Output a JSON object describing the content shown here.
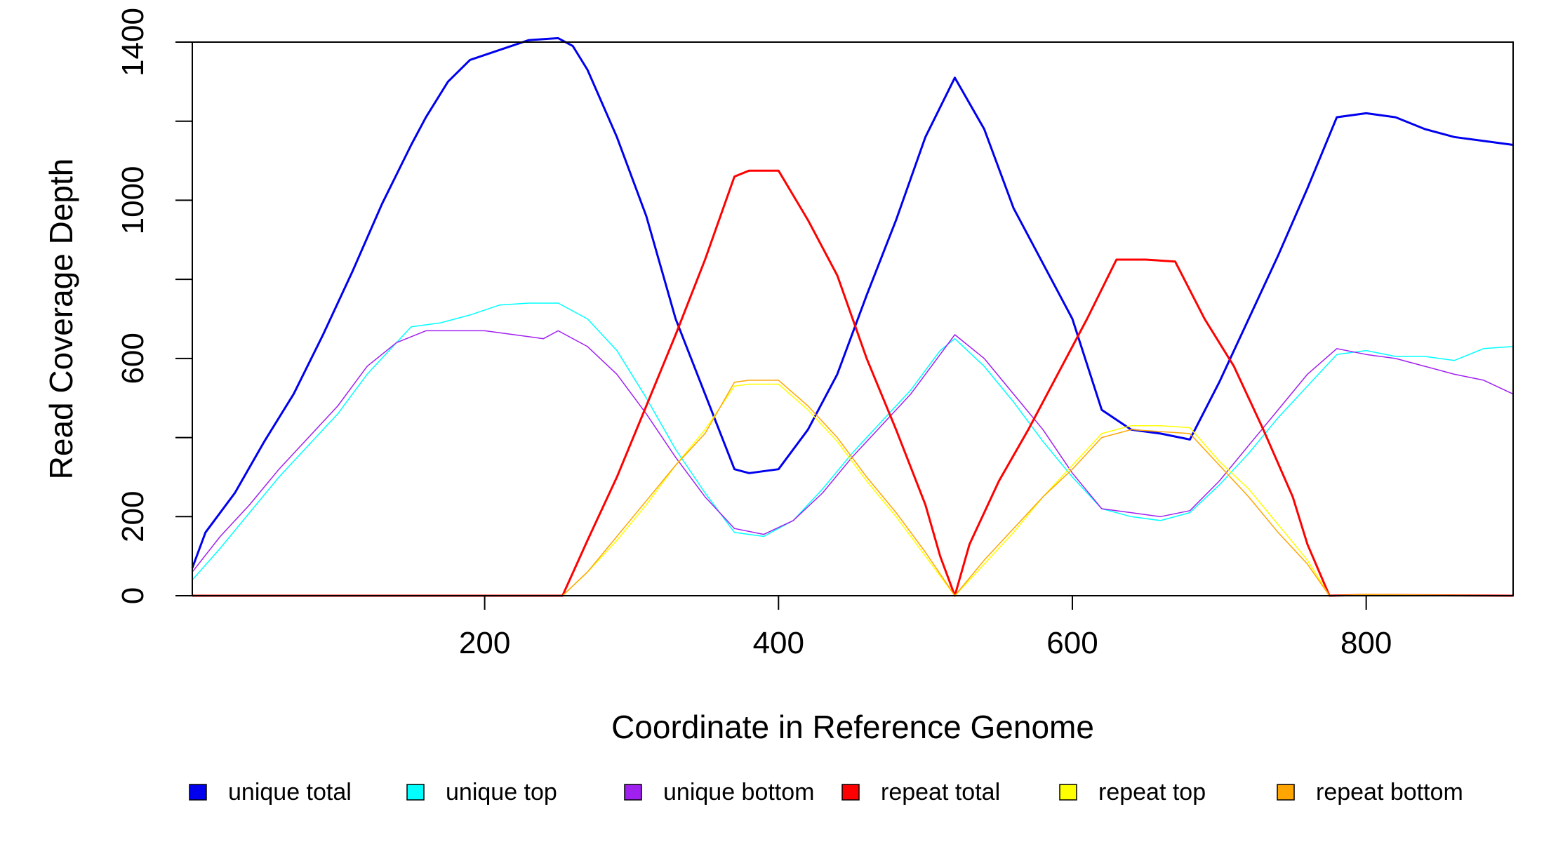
{
  "chart_data": {
    "type": "line",
    "title": "",
    "xlabel": "Coordinate in Reference Genome",
    "ylabel": "Read Coverage Depth",
    "xlim": [
      1,
      900
    ],
    "ylim": [
      0,
      1400
    ],
    "x_ticks": [
      200,
      400,
      600,
      800
    ],
    "y_ticks": [
      0,
      200,
      400,
      600,
      800,
      1000,
      1200,
      1400
    ],
    "y_tick_labels": [
      "0",
      "200",
      "",
      "600",
      "",
      "1000",
      "",
      "1400"
    ],
    "grid": false,
    "legend_position": "bottom",
    "series": [
      {
        "name": "unique total",
        "color": "#0000ee",
        "line_width": 3,
        "points": [
          [
            1,
            70
          ],
          [
            10,
            160
          ],
          [
            30,
            260
          ],
          [
            50,
            390
          ],
          [
            70,
            510
          ],
          [
            90,
            660
          ],
          [
            110,
            820
          ],
          [
            130,
            990
          ],
          [
            150,
            1140
          ],
          [
            160,
            1210
          ],
          [
            175,
            1300
          ],
          [
            190,
            1355
          ],
          [
            210,
            1380
          ],
          [
            230,
            1405
          ],
          [
            250,
            1410
          ],
          [
            260,
            1390
          ],
          [
            270,
            1330
          ],
          [
            290,
            1160
          ],
          [
            310,
            960
          ],
          [
            330,
            700
          ],
          [
            350,
            510
          ],
          [
            370,
            320
          ],
          [
            380,
            310
          ],
          [
            400,
            320
          ],
          [
            420,
            420
          ],
          [
            440,
            560
          ],
          [
            460,
            760
          ],
          [
            480,
            950
          ],
          [
            500,
            1160
          ],
          [
            520,
            1310
          ],
          [
            540,
            1180
          ],
          [
            560,
            980
          ],
          [
            580,
            840
          ],
          [
            600,
            700
          ],
          [
            620,
            470
          ],
          [
            640,
            420
          ],
          [
            660,
            410
          ],
          [
            680,
            395
          ],
          [
            700,
            540
          ],
          [
            720,
            700
          ],
          [
            740,
            860
          ],
          [
            760,
            1030
          ],
          [
            780,
            1210
          ],
          [
            800,
            1220
          ],
          [
            820,
            1210
          ],
          [
            840,
            1180
          ],
          [
            860,
            1160
          ],
          [
            880,
            1150
          ],
          [
            900,
            1140
          ]
        ]
      },
      {
        "name": "unique top",
        "color": "#00ffff",
        "line_width": 1.5,
        "points": [
          [
            1,
            40
          ],
          [
            20,
            120
          ],
          [
            40,
            210
          ],
          [
            60,
            300
          ],
          [
            80,
            380
          ],
          [
            100,
            460
          ],
          [
            120,
            560
          ],
          [
            140,
            640
          ],
          [
            150,
            680
          ],
          [
            170,
            690
          ],
          [
            190,
            710
          ],
          [
            210,
            735
          ],
          [
            230,
            740
          ],
          [
            250,
            740
          ],
          [
            270,
            700
          ],
          [
            290,
            620
          ],
          [
            310,
            500
          ],
          [
            330,
            370
          ],
          [
            350,
            260
          ],
          [
            370,
            160
          ],
          [
            390,
            150
          ],
          [
            410,
            190
          ],
          [
            430,
            270
          ],
          [
            450,
            360
          ],
          [
            470,
            440
          ],
          [
            490,
            520
          ],
          [
            510,
            620
          ],
          [
            520,
            650
          ],
          [
            540,
            580
          ],
          [
            560,
            490
          ],
          [
            580,
            390
          ],
          [
            600,
            300
          ],
          [
            620,
            220
          ],
          [
            640,
            200
          ],
          [
            660,
            190
          ],
          [
            680,
            210
          ],
          [
            700,
            280
          ],
          [
            720,
            360
          ],
          [
            740,
            450
          ],
          [
            760,
            530
          ],
          [
            780,
            610
          ],
          [
            800,
            620
          ],
          [
            820,
            605
          ],
          [
            840,
            605
          ],
          [
            860,
            595
          ],
          [
            880,
            625
          ],
          [
            900,
            630
          ]
        ]
      },
      {
        "name": "unique bottom",
        "color": "#a020f0",
        "line_width": 1.5,
        "points": [
          [
            1,
            60
          ],
          [
            20,
            150
          ],
          [
            40,
            230
          ],
          [
            60,
            320
          ],
          [
            80,
            400
          ],
          [
            100,
            480
          ],
          [
            120,
            580
          ],
          [
            140,
            640
          ],
          [
            160,
            670
          ],
          [
            180,
            670
          ],
          [
            200,
            670
          ],
          [
            220,
            660
          ],
          [
            240,
            650
          ],
          [
            250,
            670
          ],
          [
            270,
            630
          ],
          [
            290,
            560
          ],
          [
            310,
            460
          ],
          [
            330,
            350
          ],
          [
            350,
            250
          ],
          [
            370,
            170
          ],
          [
            390,
            155
          ],
          [
            410,
            190
          ],
          [
            430,
            260
          ],
          [
            450,
            350
          ],
          [
            470,
            430
          ],
          [
            490,
            510
          ],
          [
            510,
            610
          ],
          [
            520,
            660
          ],
          [
            540,
            600
          ],
          [
            560,
            510
          ],
          [
            580,
            420
          ],
          [
            600,
            310
          ],
          [
            620,
            220
          ],
          [
            640,
            210
          ],
          [
            660,
            200
          ],
          [
            680,
            215
          ],
          [
            700,
            290
          ],
          [
            720,
            380
          ],
          [
            740,
            470
          ],
          [
            760,
            560
          ],
          [
            780,
            625
          ],
          [
            800,
            610
          ],
          [
            820,
            600
          ],
          [
            840,
            580
          ],
          [
            860,
            560
          ],
          [
            880,
            545
          ],
          [
            900,
            510
          ]
        ]
      },
      {
        "name": "repeat total",
        "color": "#ff0000",
        "line_width": 3,
        "points": [
          [
            1,
            0
          ],
          [
            200,
            0
          ],
          [
            253,
            0
          ],
          [
            270,
            140
          ],
          [
            290,
            300
          ],
          [
            310,
            480
          ],
          [
            330,
            660
          ],
          [
            350,
            850
          ],
          [
            370,
            1060
          ],
          [
            380,
            1075
          ],
          [
            400,
            1075
          ],
          [
            420,
            950
          ],
          [
            440,
            810
          ],
          [
            460,
            600
          ],
          [
            480,
            420
          ],
          [
            500,
            230
          ],
          [
            510,
            100
          ],
          [
            520,
            0
          ],
          [
            530,
            130
          ],
          [
            550,
            290
          ],
          [
            570,
            420
          ],
          [
            590,
            560
          ],
          [
            610,
            700
          ],
          [
            630,
            850
          ],
          [
            650,
            850
          ],
          [
            670,
            845
          ],
          [
            690,
            700
          ],
          [
            710,
            580
          ],
          [
            730,
            420
          ],
          [
            750,
            250
          ],
          [
            760,
            130
          ],
          [
            775,
            0
          ],
          [
            800,
            2
          ],
          [
            900,
            0
          ]
        ]
      },
      {
        "name": "repeat top",
        "color": "#ffff00",
        "line_width": 1.5,
        "points": [
          [
            1,
            0
          ],
          [
            200,
            0
          ],
          [
            253,
            0
          ],
          [
            270,
            60
          ],
          [
            290,
            140
          ],
          [
            310,
            230
          ],
          [
            330,
            330
          ],
          [
            350,
            420
          ],
          [
            370,
            530
          ],
          [
            380,
            535
          ],
          [
            400,
            535
          ],
          [
            420,
            470
          ],
          [
            440,
            390
          ],
          [
            460,
            290
          ],
          [
            480,
            200
          ],
          [
            500,
            100
          ],
          [
            520,
            0
          ],
          [
            540,
            80
          ],
          [
            560,
            160
          ],
          [
            580,
            250
          ],
          [
            600,
            330
          ],
          [
            620,
            410
          ],
          [
            640,
            430
          ],
          [
            660,
            430
          ],
          [
            680,
            425
          ],
          [
            700,
            340
          ],
          [
            720,
            270
          ],
          [
            740,
            180
          ],
          [
            760,
            90
          ],
          [
            775,
            0
          ],
          [
            900,
            0
          ]
        ]
      },
      {
        "name": "repeat bottom",
        "color": "#ffa500",
        "line_width": 1.5,
        "points": [
          [
            1,
            0
          ],
          [
            200,
            0
          ],
          [
            253,
            0
          ],
          [
            270,
            60
          ],
          [
            290,
            150
          ],
          [
            310,
            240
          ],
          [
            330,
            330
          ],
          [
            350,
            410
          ],
          [
            370,
            540
          ],
          [
            380,
            545
          ],
          [
            400,
            545
          ],
          [
            420,
            480
          ],
          [
            440,
            400
          ],
          [
            460,
            300
          ],
          [
            480,
            210
          ],
          [
            500,
            110
          ],
          [
            520,
            0
          ],
          [
            540,
            90
          ],
          [
            560,
            170
          ],
          [
            580,
            250
          ],
          [
            600,
            320
          ],
          [
            620,
            400
          ],
          [
            640,
            420
          ],
          [
            660,
            415
          ],
          [
            680,
            410
          ],
          [
            700,
            330
          ],
          [
            720,
            250
          ],
          [
            740,
            160
          ],
          [
            760,
            80
          ],
          [
            775,
            0
          ],
          [
            800,
            3
          ],
          [
            900,
            0
          ]
        ]
      }
    ]
  }
}
